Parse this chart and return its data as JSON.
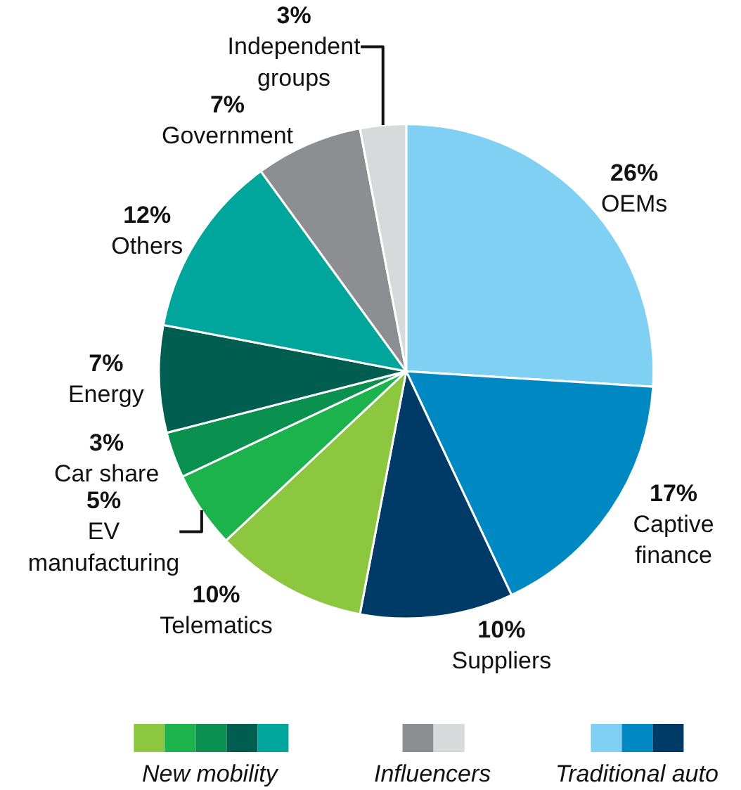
{
  "chart_data": {
    "type": "pie",
    "categories": [
      "OEMs",
      "Captive finance",
      "Suppliers",
      "Telematics",
      "EV manufacturing",
      "Car share",
      "Energy",
      "Others",
      "Government",
      "Independent groups"
    ],
    "values": [
      26,
      17,
      10,
      10,
      5,
      3,
      7,
      12,
      7,
      3
    ],
    "colors": [
      "#7fd0f2",
      "#0088c2",
      "#003a66",
      "#8dc63f",
      "#1db34c",
      "#0a9150",
      "#005e50",
      "#00a69c",
      "#8c8e91",
      "#d8d9da"
    ],
    "value_labels": [
      "26%",
      "17%",
      "10%",
      "10%",
      "5%",
      "3%",
      "7%",
      "12%",
      "7%",
      "3%"
    ],
    "annotations": [
      "New mobility",
      "Influencers",
      "Traditional auto"
    ]
  }
}
